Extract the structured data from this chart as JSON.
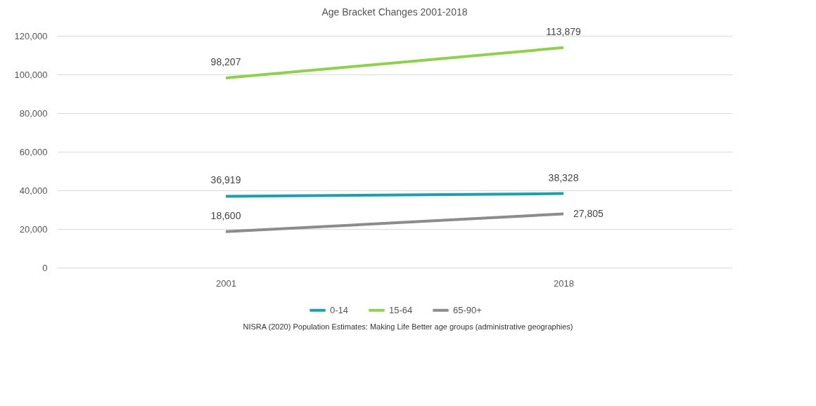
{
  "chart_data": {
    "type": "line",
    "title": "Age Bracket Changes 2001-2018",
    "categories": [
      "2001",
      "2018"
    ],
    "series": [
      {
        "name": "0-14",
        "color": "#1ba1ad",
        "values": [
          36919,
          38328
        ],
        "value_labels": [
          "36,919",
          "38,328"
        ]
      },
      {
        "name": "15-64",
        "color": "#8fd14f",
        "values": [
          98207,
          113879
        ],
        "value_labels": [
          "98,207",
          "113,879"
        ]
      },
      {
        "name": "65-90+",
        "color": "#8c8c8c",
        "values": [
          18600,
          27805
        ],
        "value_labels": [
          "18,600",
          "27,805"
        ]
      }
    ],
    "ylim": [
      0,
      120000
    ],
    "yticks": [
      0,
      {
        "value": 20000,
        "label": "20,000"
      },
      {
        "value": 40000,
        "label": "40,000"
      },
      {
        "value": 60000,
        "label": "60,000"
      },
      {
        "value": 80000,
        "label": "80,000"
      },
      {
        "value": 100000,
        "label": "100,000"
      },
      {
        "value": 120000,
        "label": "120,000"
      }
    ],
    "grid": "y",
    "legend": "bottom",
    "marker": "none",
    "annotations": [
      "NISRA (2020) Population Estimates: Making Life Better age groups (administrative geographies)"
    ]
  }
}
